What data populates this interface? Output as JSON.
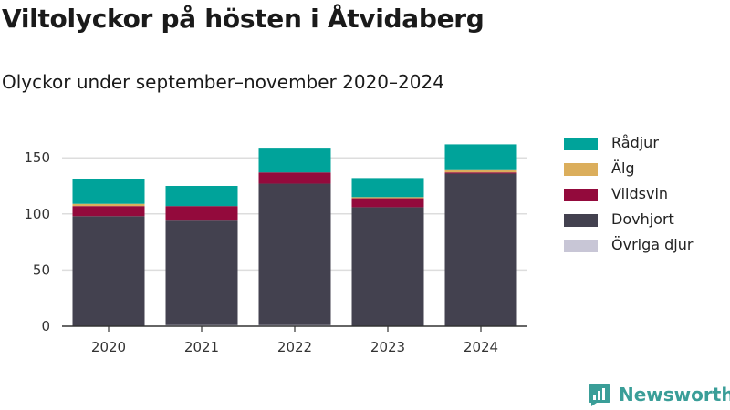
{
  "chart_data": {
    "type": "bar",
    "stacked": true,
    "title": "Viltolyckor på hösten i Åtvidaberg",
    "subtitle": "Olyckor under september–november 2020–2024",
    "xlabel": "",
    "ylabel": "",
    "categories": [
      "2020",
      "2021",
      "2022",
      "2023",
      "2024"
    ],
    "ylim": [
      0,
      165
    ],
    "yticks": [
      0,
      50,
      100,
      150
    ],
    "grid": true,
    "legend_position": "right",
    "series": [
      {
        "name": "Övriga djur",
        "color": "#c8c6d6",
        "values": [
          0,
          1,
          1,
          0,
          0
        ]
      },
      {
        "name": "Dovhjort",
        "color": "#43414f",
        "values": [
          98,
          93,
          126,
          106,
          136
        ]
      },
      {
        "name": "Vildsvin",
        "color": "#930a3c",
        "values": [
          9,
          13,
          10,
          8,
          1
        ]
      },
      {
        "name": "Älg",
        "color": "#dbae5c",
        "values": [
          2,
          0,
          0,
          1,
          2
        ]
      },
      {
        "name": "Rådjur",
        "color": "#00a39a",
        "values": [
          22,
          18,
          22,
          17,
          23
        ]
      }
    ],
    "legend_order": [
      "Rådjur",
      "Älg",
      "Vildsvin",
      "Dovhjort",
      "Övriga djur"
    ]
  },
  "brand": {
    "name": "Newsworthy",
    "color": "#3a9e98"
  }
}
